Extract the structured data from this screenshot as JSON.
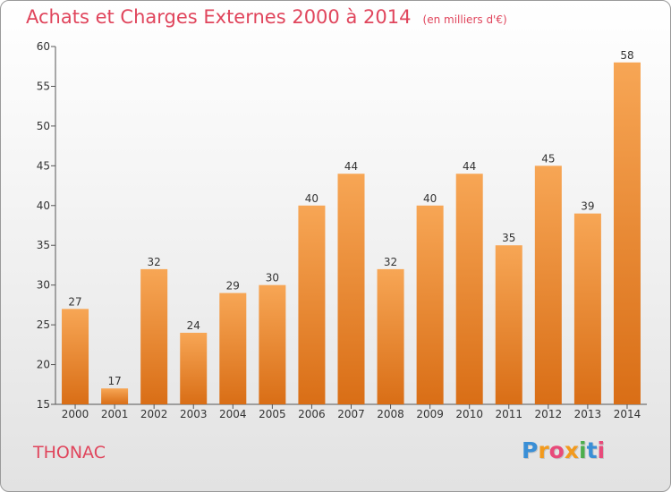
{
  "header": {
    "title": "Achats et Charges Externes 2000 à 2014",
    "unit": "(en milliers d'€)"
  },
  "commune": "THONAC",
  "logo": {
    "letters": [
      "P",
      "r",
      "o",
      "x",
      "i",
      "t",
      "i"
    ],
    "colors": [
      "#3a8fd6",
      "#f29a1e",
      "#e84a7a",
      "#f29a1e",
      "#4cae4c",
      "#3a8fd6",
      "#e84a7a"
    ]
  },
  "colors": {
    "title": "#e0455c",
    "bar_top": "#f7a655",
    "bar_bottom": "#d96e16"
  },
  "chart_data": {
    "type": "bar",
    "title": "Achats et Charges Externes 2000 à 2014",
    "categories": [
      "2000",
      "2001",
      "2002",
      "2003",
      "2004",
      "2005",
      "2006",
      "2007",
      "2008",
      "2009",
      "2010",
      "2011",
      "2012",
      "2013",
      "2014"
    ],
    "values": [
      27,
      17,
      32,
      24,
      29,
      30,
      40,
      44,
      32,
      40,
      44,
      35,
      45,
      39,
      58
    ],
    "ylim": [
      15,
      60
    ],
    "yticks": [
      15,
      20,
      25,
      30,
      35,
      40,
      45,
      50,
      55,
      60
    ],
    "grid": false,
    "legend": "none"
  }
}
